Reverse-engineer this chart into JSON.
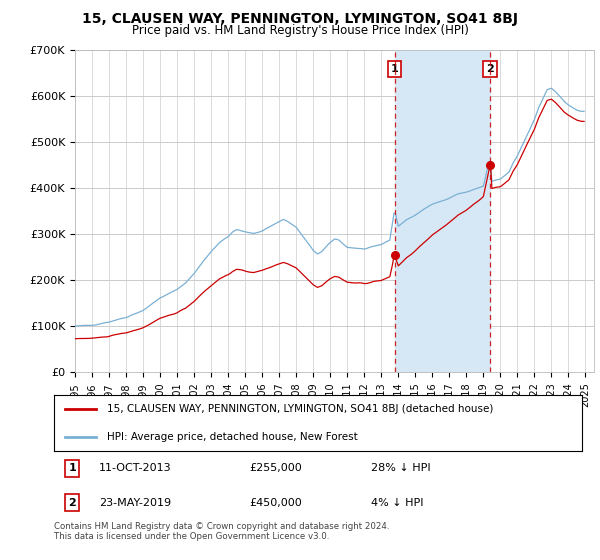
{
  "title": "15, CLAUSEN WAY, PENNINGTON, LYMINGTON, SO41 8BJ",
  "subtitle": "Price paid vs. HM Land Registry's House Price Index (HPI)",
  "ylabel_ticks": [
    "£0",
    "£100K",
    "£200K",
    "£300K",
    "£400K",
    "£500K",
    "£600K",
    "£700K"
  ],
  "ylim": [
    0,
    700000
  ],
  "xlim_start": 1995.0,
  "xlim_end": 2025.5,
  "sale1_x": 2013.78,
  "sale1_y": 255000,
  "sale1_label": "11-OCT-2013",
  "sale1_price": "£255,000",
  "sale1_hpi": "28% ↓ HPI",
  "sale2_x": 2019.39,
  "sale2_y": 450000,
  "sale2_label": "23-MAY-2019",
  "sale2_price": "£450,000",
  "sale2_hpi": "4% ↓ HPI",
  "red_line_color": "#cc0000",
  "blue_line_color": "#7ab0d4",
  "shade_color": "#d6e8f5",
  "dashed_line_color": "#cc0000",
  "background_color": "#ffffff",
  "grid_color": "#cccccc",
  "legend_label_red": "15, CLAUSEN WAY, PENNINGTON, LYMINGTON, SO41 8BJ (detached house)",
  "legend_label_blue": "HPI: Average price, detached house, New Forest",
  "copyright": "Contains HM Land Registry data © Crown copyright and database right 2024.\nThis data is licensed under the Open Government Licence v3.0."
}
